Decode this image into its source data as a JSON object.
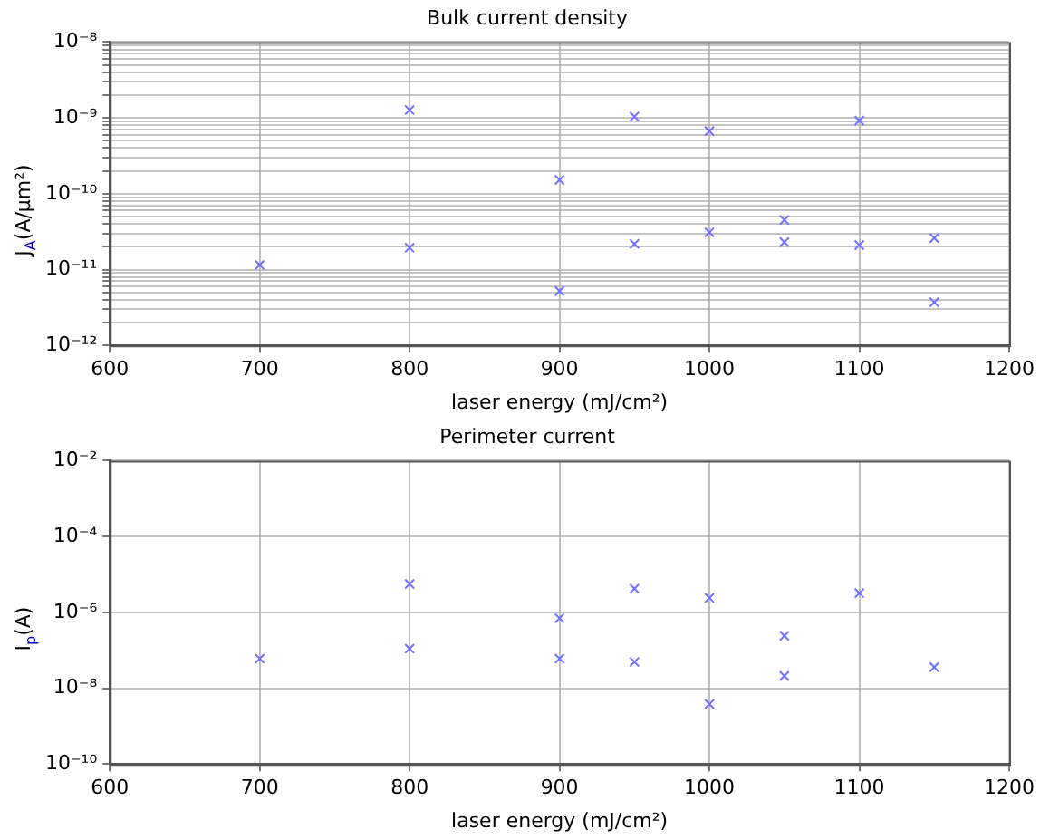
{
  "chart_data": [
    {
      "type": "scatter",
      "title": "Bulk current density",
      "xlabel": "laser energy (mJ/cm²)",
      "ylabel": "J$_{A}$(A/μm²)",
      "log": "y",
      "grid": true,
      "marker": "cross",
      "legend": false,
      "xlim": [
        600,
        1200
      ],
      "xticks": [
        600,
        700,
        800,
        900,
        1000,
        1100,
        1200
      ],
      "ylim": [
        1e-12,
        1e-08
      ],
      "yticks": [
        {
          "value": 1e-12,
          "label": "10⁻¹²"
        },
        {
          "value": 2e-12,
          "label": null
        },
        {
          "value": 3e-12,
          "label": null
        },
        {
          "value": 4e-12,
          "label": null
        },
        {
          "value": 5e-12,
          "label": null
        },
        {
          "value": 6e-12,
          "label": null
        },
        {
          "value": 7e-12,
          "label": null
        },
        {
          "value": 8e-12,
          "label": null
        },
        {
          "value": 9e-12,
          "label": null
        },
        {
          "value": 1e-11,
          "label": "10⁻¹¹"
        },
        {
          "value": 2e-11,
          "label": null
        },
        {
          "value": 3e-11,
          "label": null
        },
        {
          "value": 4e-11,
          "label": null
        },
        {
          "value": 5e-11,
          "label": null
        },
        {
          "value": 6e-11,
          "label": null
        },
        {
          "value": 7e-11,
          "label": null
        },
        {
          "value": 8e-11,
          "label": null
        },
        {
          "value": 9e-11,
          "label": null
        },
        {
          "value": 1e-10,
          "label": "10⁻¹⁰"
        },
        {
          "value": 2e-10,
          "label": null
        },
        {
          "value": 3e-10,
          "label": null
        },
        {
          "value": 4e-10,
          "label": null
        },
        {
          "value": 5e-10,
          "label": null
        },
        {
          "value": 6e-10,
          "label": null
        },
        {
          "value": 7e-10,
          "label": null
        },
        {
          "value": 8e-10,
          "label": null
        },
        {
          "value": 9e-10,
          "label": null
        },
        {
          "value": 1e-09,
          "label": "10⁻⁹"
        },
        {
          "value": 2e-09,
          "label": null
        },
        {
          "value": 3e-09,
          "label": null
        },
        {
          "value": 4e-09,
          "label": null
        },
        {
          "value": 5e-09,
          "label": null
        },
        {
          "value": 6e-09,
          "label": null
        },
        {
          "value": 7e-09,
          "label": null
        },
        {
          "value": 8e-09,
          "label": null
        },
        {
          "value": 9e-09,
          "label": null
        },
        {
          "value": 1e-08,
          "label": "10⁻⁸"
        }
      ],
      "series": [
        {
          "color": "#7070ff",
          "x": [
            700,
            800,
            800,
            900,
            900,
            950,
            950,
            1000,
            1000,
            1050,
            1050,
            1100,
            1100,
            1150,
            1150
          ],
          "values": [
            1.15e-11,
            1.27e-09,
            1.94e-11,
            1.52e-10,
            5.2e-12,
            1.04e-09,
            2.18e-11,
            6.7e-10,
            3.1e-11,
            4.5e-11,
            2.3e-11,
            9.2e-10,
            2.1e-11,
            2.6e-11,
            3.7e-12
          ]
        }
      ]
    },
    {
      "type": "scatter",
      "title": "Perimeter current",
      "xlabel": "laser energy (mJ/cm²)",
      "ylabel": "I$_{p}$(A)",
      "log": "y",
      "grid": true,
      "marker": "cross",
      "legend": false,
      "xlim": [
        600,
        1200
      ],
      "xticks": [
        600,
        700,
        800,
        900,
        1000,
        1100,
        1200
      ],
      "ylim": [
        1e-10,
        0.01
      ],
      "yticks": [
        {
          "value": 1e-10,
          "label": "10⁻¹⁰"
        },
        {
          "value": 1e-08,
          "label": "10⁻⁸"
        },
        {
          "value": 1e-06,
          "label": "10⁻⁶"
        },
        {
          "value": 0.0001,
          "label": "10⁻⁴"
        },
        {
          "value": 0.01,
          "label": "10⁻²"
        }
      ],
      "series": [
        {
          "color": "#7070ff",
          "x": [
            700,
            800,
            800,
            900,
            900,
            950,
            950,
            1000,
            1000,
            1050,
            1050,
            1100,
            1150
          ],
          "values": [
            6e-08,
            5.6e-06,
            1.1e-07,
            7e-07,
            6e-08,
            4.2e-06,
            4.9e-08,
            2.4e-06,
            3.8e-09,
            2.4e-07,
            2.1e-08,
            3.2e-06,
            3.6e-08
          ]
        }
      ]
    }
  ]
}
